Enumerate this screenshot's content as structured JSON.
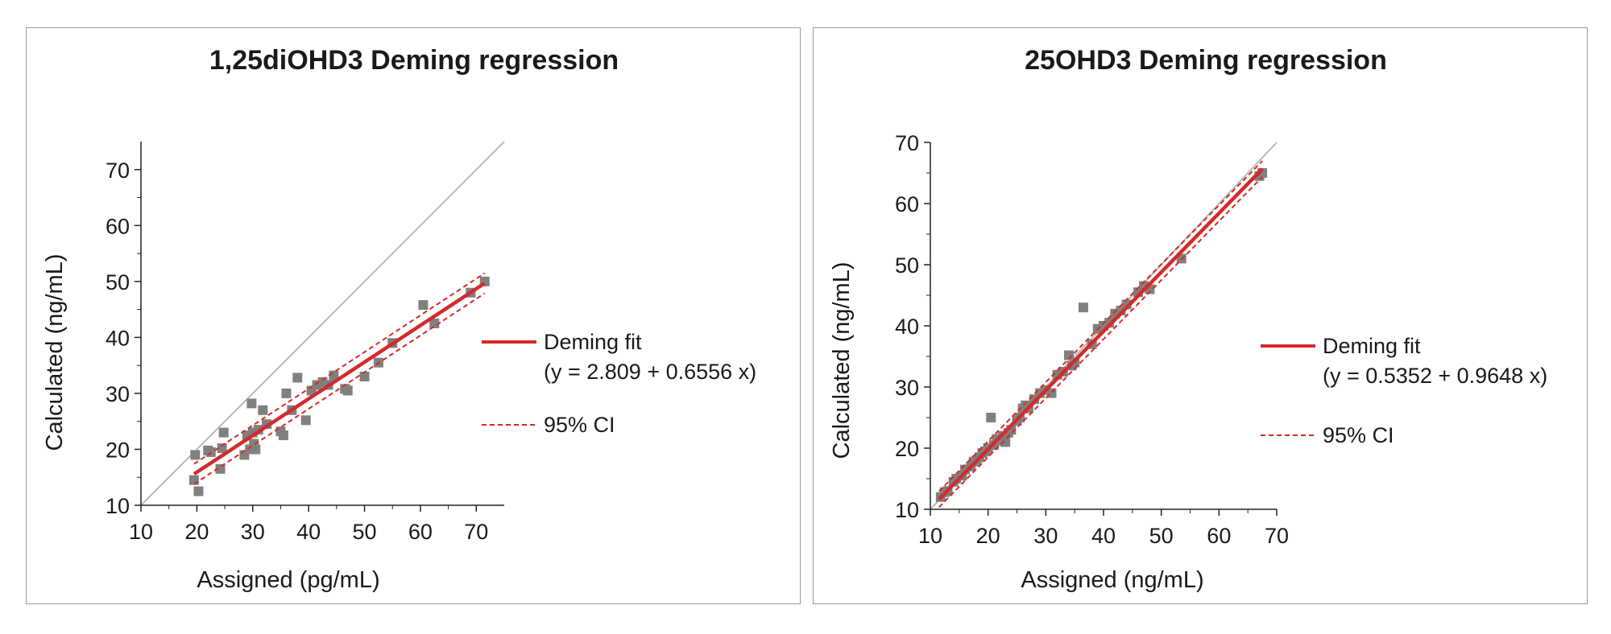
{
  "chart_data": [
    {
      "type": "scatter",
      "title": "1,25diOHD3 Deming regression",
      "xlabel": "Assigned (pg/mL)",
      "ylabel": "Calculated (ng/mL)",
      "xlim": [
        10,
        75
      ],
      "ylim": [
        10,
        75
      ],
      "xticks": [
        10,
        20,
        30,
        40,
        50,
        60,
        70
      ],
      "yticks": [
        10,
        20,
        30,
        40,
        50,
        60,
        70
      ],
      "grid": false,
      "legend_position": "right",
      "identity_line": true,
      "fit": {
        "intercept": 2.809,
        "slope": 0.6556,
        "x_range": [
          19.5,
          71.5
        ],
        "ci_halfwidth": 1.8,
        "color": "#d42a2a"
      },
      "legend": {
        "fit_label": "Deming fit",
        "fit_equation": "(y = 2.809 + 0.6556 x)",
        "ci_label": "95% CI"
      },
      "points": {
        "x": [
          19.5,
          19.7,
          20.3,
          22.0,
          22.5,
          24.2,
          24.5,
          24.8,
          28.5,
          29.0,
          29.5,
          29.8,
          30.0,
          30.2,
          30.5,
          31.0,
          31.8,
          32.5,
          35.0,
          35.5,
          36.0,
          37.0,
          38.0,
          39.5,
          40.5,
          41.5,
          42.5,
          43.5,
          44.5,
          46.5,
          47.0,
          50.0,
          52.5,
          55.0,
          60.5,
          62.5,
          69.0,
          71.5
        ],
        "y": [
          14.5,
          19.0,
          12.5,
          19.8,
          19.5,
          16.5,
          20.2,
          23.0,
          19.0,
          22.5,
          20.0,
          28.2,
          23.0,
          21.0,
          20.0,
          23.5,
          27.0,
          24.5,
          23.2,
          22.5,
          30.0,
          27.0,
          32.8,
          25.2,
          30.5,
          31.5,
          32.0,
          31.5,
          33.2,
          30.8,
          30.5,
          33.0,
          35.5,
          39.0,
          45.8,
          42.5,
          48.0,
          50.0
        ]
      },
      "point_color": "#808080"
    },
    {
      "type": "scatter",
      "title": "25OHD3 Deming regression",
      "xlabel": "Assigned (ng/mL)",
      "ylabel": "Calculated (ng/mL)",
      "xlim": [
        10,
        70
      ],
      "ylim": [
        10,
        70
      ],
      "xticks": [
        10,
        20,
        30,
        40,
        50,
        60,
        70
      ],
      "yticks": [
        10,
        20,
        30,
        40,
        50,
        60,
        70
      ],
      "grid": false,
      "legend_position": "right",
      "identity_line": true,
      "fit": {
        "intercept": 0.5352,
        "slope": 0.9648,
        "x_range": [
          11.5,
          67.5
        ],
        "ci_halfwidth": 1.3,
        "color": "#d42a2a"
      },
      "legend": {
        "fit_label": "Deming fit",
        "fit_equation": "(y = 0.5352 + 0.9648 x)",
        "ci_label": "95% CI"
      },
      "points": {
        "x": [
          11.8,
          12.5,
          13.0,
          14.0,
          14.5,
          15.5,
          16.0,
          17.0,
          17.5,
          18.0,
          18.5,
          19.0,
          19.5,
          20.0,
          20.5,
          21.0,
          21.5,
          22.0,
          22.5,
          23.0,
          23.5,
          24.0,
          25.0,
          25.5,
          26.0,
          26.5,
          27.0,
          28.0,
          29.0,
          30.0,
          31.0,
          32.0,
          33.0,
          34.0,
          34.5,
          35.0,
          36.5,
          38.0,
          39.0,
          40.0,
          41.0,
          42.0,
          43.0,
          44.0,
          46.0,
          47.0,
          48.0,
          53.5,
          67.0,
          67.5
        ],
        "y": [
          12.0,
          12.8,
          13.0,
          14.5,
          15.0,
          15.5,
          16.5,
          17.0,
          17.8,
          18.0,
          18.5,
          19.2,
          19.5,
          20.0,
          25.0,
          20.5,
          21.5,
          21.2,
          22.0,
          21.0,
          22.5,
          23.0,
          24.5,
          25.0,
          26.5,
          27.0,
          26.5,
          28.0,
          29.0,
          29.5,
          29.0,
          32.0,
          32.5,
          35.2,
          33.5,
          34.0,
          43.0,
          37.0,
          39.5,
          40.0,
          40.5,
          42.0,
          42.5,
          43.5,
          45.5,
          46.5,
          46.0,
          51.0,
          64.5,
          65.0
        ]
      },
      "point_color": "#808080"
    }
  ]
}
